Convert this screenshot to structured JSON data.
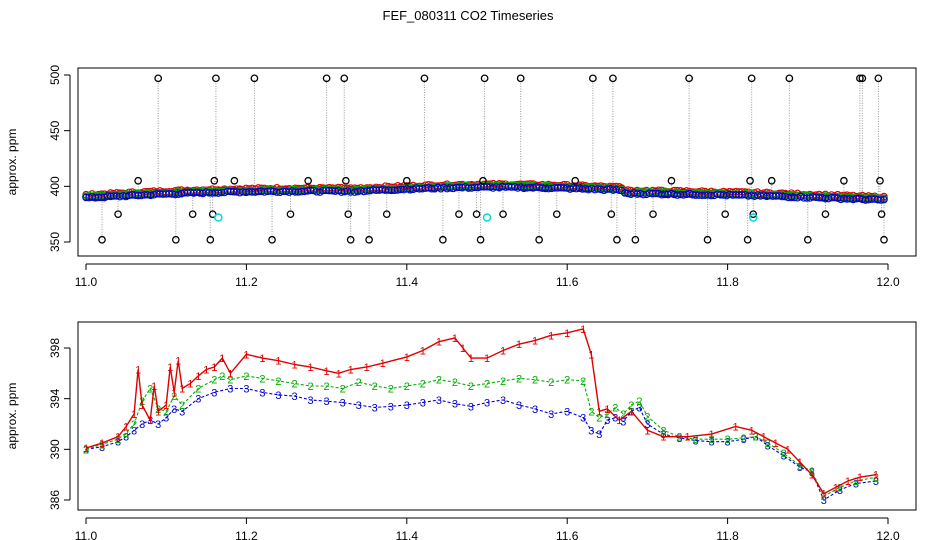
{
  "title": "FEF_080311  CO2 Timeseries",
  "colors": {
    "raw": "#000000",
    "connector": "#999999",
    "series1": "#e00000",
    "series2": "#00b000",
    "series3": "#0000d0",
    "flag": "#00d8d8",
    "frame": "#000000"
  },
  "chart_data": [
    {
      "type": "scatter",
      "title": "",
      "xlabel": "",
      "ylabel": "approx. ppm",
      "xlim": [
        11.0,
        12.0
      ],
      "ylim": [
        350,
        500
      ],
      "xticks": [
        "11.0",
        "11.2",
        "11.4",
        "11.6",
        "11.8",
        "12.0"
      ],
      "yticks": [
        "350",
        "400",
        "450",
        "500"
      ],
      "baseline_segments": [
        {
          "x": [
            11.0,
            11.33
          ],
          "y_start": 390,
          "y_end": 396,
          "bump": 2
        },
        {
          "x": [
            11.335,
            11.665
          ],
          "y_start": 396,
          "y_end": 397,
          "bump": 3
        },
        {
          "x": [
            11.668,
            11.995
          ],
          "y_start": 394,
          "y_end": 388,
          "bump": 1
        }
      ],
      "raw_outliers": [
        {
          "x": 11.02,
          "y": 352
        },
        {
          "x": 11.04,
          "y": 375
        },
        {
          "x": 11.065,
          "y": 405
        },
        {
          "x": 11.09,
          "y": 497
        },
        {
          "x": 11.112,
          "y": 352
        },
        {
          "x": 11.133,
          "y": 375
        },
        {
          "x": 11.155,
          "y": 352
        },
        {
          "x": 11.158,
          "y": 375
        },
        {
          "x": 11.16,
          "y": 405
        },
        {
          "x": 11.162,
          "y": 497
        },
        {
          "x": 11.185,
          "y": 405
        },
        {
          "x": 11.21,
          "y": 497
        },
        {
          "x": 11.232,
          "y": 352
        },
        {
          "x": 11.255,
          "y": 375
        },
        {
          "x": 11.277,
          "y": 405
        },
        {
          "x": 11.3,
          "y": 497
        },
        {
          "x": 11.322,
          "y": 497
        },
        {
          "x": 11.324,
          "y": 405
        },
        {
          "x": 11.327,
          "y": 375
        },
        {
          "x": 11.33,
          "y": 352
        },
        {
          "x": 11.353,
          "y": 352
        },
        {
          "x": 11.375,
          "y": 375
        },
        {
          "x": 11.4,
          "y": 405
        },
        {
          "x": 11.422,
          "y": 497
        },
        {
          "x": 11.445,
          "y": 352
        },
        {
          "x": 11.465,
          "y": 375
        },
        {
          "x": 11.487,
          "y": 375
        },
        {
          "x": 11.492,
          "y": 352
        },
        {
          "x": 11.495,
          "y": 405
        },
        {
          "x": 11.497,
          "y": 497
        },
        {
          "x": 11.52,
          "y": 375
        },
        {
          "x": 11.542,
          "y": 497
        },
        {
          "x": 11.565,
          "y": 352
        },
        {
          "x": 11.587,
          "y": 375
        },
        {
          "x": 11.61,
          "y": 405
        },
        {
          "x": 11.632,
          "y": 497
        },
        {
          "x": 11.655,
          "y": 375
        },
        {
          "x": 11.657,
          "y": 497
        },
        {
          "x": 11.662,
          "y": 352
        },
        {
          "x": 11.685,
          "y": 352
        },
        {
          "x": 11.707,
          "y": 375
        },
        {
          "x": 11.73,
          "y": 405
        },
        {
          "x": 11.752,
          "y": 497
        },
        {
          "x": 11.775,
          "y": 352
        },
        {
          "x": 11.797,
          "y": 375
        },
        {
          "x": 11.825,
          "y": 352
        },
        {
          "x": 11.828,
          "y": 405
        },
        {
          "x": 11.83,
          "y": 497
        },
        {
          "x": 11.832,
          "y": 375
        },
        {
          "x": 11.855,
          "y": 405
        },
        {
          "x": 11.877,
          "y": 497
        },
        {
          "x": 11.9,
          "y": 352
        },
        {
          "x": 11.922,
          "y": 375
        },
        {
          "x": 11.945,
          "y": 405
        },
        {
          "x": 11.965,
          "y": 497
        },
        {
          "x": 11.968,
          "y": 497
        },
        {
          "x": 11.988,
          "y": 497
        },
        {
          "x": 11.99,
          "y": 405
        },
        {
          "x": 11.992,
          "y": 375
        },
        {
          "x": 11.995,
          "y": 352
        }
      ],
      "flagged_points": [
        {
          "x": 11.165,
          "y": 372
        },
        {
          "x": 11.5,
          "y": 372
        },
        {
          "x": 11.832,
          "y": 372
        }
      ]
    },
    {
      "type": "line",
      "title": "",
      "xlabel": "",
      "ylabel": "approx. ppm",
      "xlim": [
        11.0,
        12.0
      ],
      "ylim": [
        385.5,
        399.5
      ],
      "xticks": [
        "11.0",
        "11.2",
        "11.4",
        "11.6",
        "11.8",
        "12.0"
      ],
      "yticks": [
        "386",
        "390",
        "394",
        "398"
      ],
      "series": [
        {
          "name": "1",
          "x": [
            11.0,
            11.02,
            11.04,
            11.05,
            11.06,
            11.065,
            11.07,
            11.08,
            11.085,
            11.09,
            11.1,
            11.105,
            11.11,
            11.115,
            11.12,
            11.13,
            11.14,
            11.15,
            11.16,
            11.17,
            11.18,
            11.2,
            11.22,
            11.24,
            11.26,
            11.28,
            11.3,
            11.315,
            11.33,
            11.35,
            11.37,
            11.4,
            11.42,
            11.44,
            11.46,
            11.47,
            11.48,
            11.5,
            11.52,
            11.54,
            11.56,
            11.58,
            11.6,
            11.62,
            11.63,
            11.64,
            11.65,
            11.665,
            11.68,
            11.7,
            11.72,
            11.75,
            11.78,
            11.81,
            11.83,
            11.845,
            11.86,
            11.875,
            11.89,
            11.905,
            11.92,
            11.935,
            11.95,
            11.965,
            11.985
          ],
          "y": [
            390.1,
            390.5,
            391.0,
            391.8,
            392.8,
            396.3,
            393.5,
            392.3,
            395.0,
            393.0,
            393.5,
            396.5,
            394.5,
            397.0,
            394.8,
            395.2,
            395.8,
            396.3,
            396.5,
            397.2,
            396.0,
            397.5,
            397.2,
            397.0,
            396.7,
            396.5,
            396.2,
            396.0,
            396.3,
            396.5,
            396.8,
            397.3,
            397.8,
            398.5,
            398.8,
            398.0,
            397.2,
            397.2,
            397.8,
            398.3,
            398.6,
            399.0,
            399.2,
            399.5,
            397.5,
            393.0,
            393.2,
            392.3,
            393.0,
            391.5,
            391.0,
            391.0,
            391.2,
            391.8,
            391.5,
            391.0,
            390.5,
            390.0,
            389.0,
            388.0,
            386.5,
            387.0,
            387.5,
            387.8,
            388.0
          ]
        },
        {
          "name": "2",
          "x": [
            11.0,
            11.02,
            11.04,
            11.05,
            11.06,
            11.07,
            11.08,
            11.09,
            11.1,
            11.11,
            11.12,
            11.14,
            11.16,
            11.17,
            11.18,
            11.2,
            11.22,
            11.24,
            11.26,
            11.28,
            11.3,
            11.32,
            11.34,
            11.36,
            11.38,
            11.4,
            11.42,
            11.44,
            11.46,
            11.48,
            11.5,
            11.52,
            11.54,
            11.56,
            11.58,
            11.6,
            11.62,
            11.63,
            11.64,
            11.65,
            11.66,
            11.67,
            11.68,
            11.69,
            11.7,
            11.72,
            11.74,
            11.76,
            11.78,
            11.8,
            11.82,
            11.835,
            11.85,
            11.87,
            11.89,
            11.905,
            11.92,
            11.94,
            11.96,
            11.985
          ],
          "y": [
            390.0,
            390.4,
            390.8,
            391.3,
            392.0,
            393.8,
            394.8,
            393.2,
            393.0,
            394.2,
            393.5,
            394.8,
            395.5,
            395.8,
            395.5,
            395.8,
            395.6,
            395.4,
            395.2,
            395.0,
            395.0,
            394.8,
            395.3,
            395.0,
            394.8,
            395.0,
            395.2,
            395.5,
            395.3,
            395.0,
            395.2,
            395.4,
            395.6,
            395.5,
            395.3,
            395.5,
            395.4,
            393.0,
            392.5,
            392.8,
            393.3,
            392.8,
            393.5,
            393.8,
            392.6,
            391.5,
            391.0,
            390.8,
            390.8,
            390.8,
            390.9,
            391.0,
            390.5,
            389.7,
            388.7,
            388.3,
            386.3,
            387.0,
            387.5,
            387.8
          ]
        },
        {
          "name": "3",
          "x": [
            11.0,
            11.02,
            11.04,
            11.05,
            11.06,
            11.07,
            11.08,
            11.09,
            11.1,
            11.11,
            11.12,
            11.14,
            11.16,
            11.18,
            11.2,
            11.22,
            11.24,
            11.26,
            11.28,
            11.3,
            11.32,
            11.34,
            11.36,
            11.38,
            11.4,
            11.42,
            11.44,
            11.46,
            11.48,
            11.5,
            11.52,
            11.54,
            11.56,
            11.58,
            11.6,
            11.62,
            11.63,
            11.64,
            11.65,
            11.66,
            11.67,
            11.68,
            11.69,
            11.7,
            11.72,
            11.74,
            11.76,
            11.78,
            11.8,
            11.82,
            11.835,
            11.85,
            11.87,
            11.89,
            11.905,
            11.92,
            11.94,
            11.96,
            11.985
          ],
          "y": [
            390.0,
            390.2,
            390.6,
            391.0,
            391.5,
            392.0,
            392.3,
            392.0,
            392.5,
            393.2,
            393.0,
            394.0,
            394.5,
            394.8,
            394.8,
            394.5,
            394.3,
            394.2,
            393.9,
            393.8,
            393.7,
            393.5,
            393.3,
            393.4,
            393.5,
            393.7,
            393.9,
            393.6,
            393.4,
            393.7,
            393.9,
            393.5,
            393.2,
            392.8,
            393.0,
            392.5,
            391.5,
            391.2,
            392.3,
            392.5,
            392.2,
            393.0,
            393.3,
            392.0,
            391.2,
            390.9,
            390.7,
            390.6,
            390.6,
            390.8,
            391.0,
            390.3,
            389.5,
            388.6,
            388.2,
            386.0,
            386.8,
            387.3,
            387.5
          ]
        }
      ]
    }
  ]
}
